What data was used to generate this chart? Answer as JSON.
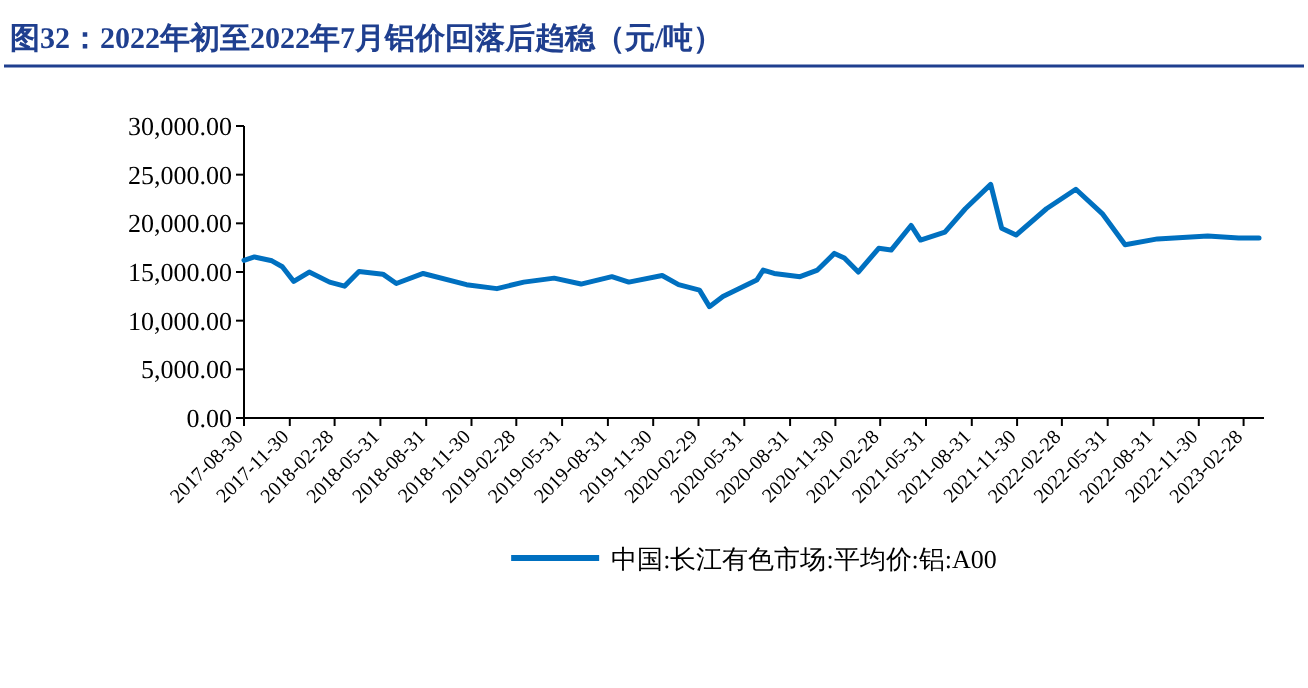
{
  "chart_data": {
    "type": "line",
    "title": "图32：2022年初至2022年7月铝价回落后趋稳（元/吨）",
    "x": [
      "2017-08-30",
      "2017-09-20",
      "2017-10-25",
      "2017-11-15",
      "2017-12-08",
      "2018-01-08",
      "2018-02-18",
      "2018-03-20",
      "2018-04-18",
      "2018-06-05",
      "2018-07-02",
      "2018-08-25",
      "2018-11-20",
      "2019-01-20",
      "2019-03-15",
      "2019-05-15",
      "2019-07-08",
      "2019-09-08",
      "2019-10-12",
      "2019-12-18",
      "2020-01-20",
      "2020-03-02",
      "2020-03-22",
      "2020-04-18",
      "2020-06-25",
      "2020-07-08",
      "2020-07-30",
      "2020-09-20",
      "2020-10-25",
      "2020-11-28",
      "2020-12-18",
      "2021-01-15",
      "2021-02-25",
      "2021-03-22",
      "2021-05-01",
      "2021-05-20",
      "2021-07-08",
      "2021-08-18",
      "2021-10-08",
      "2021-10-30",
      "2021-11-28",
      "2022-01-28",
      "2022-03-28",
      "2022-05-20",
      "2022-07-05",
      "2022-09-08",
      "2022-12-18",
      "2023-02-18",
      "2023-03-31"
    ],
    "series": [
      {
        "name": "中国:长江有色市场:平均价:铝:A00",
        "color": "#0070c0",
        "values": [
          16200,
          16550,
          16150,
          15540,
          14030,
          14990,
          13960,
          13550,
          15050,
          14780,
          13820,
          14850,
          13700,
          13290,
          13960,
          14370,
          13760,
          14520,
          13960,
          14640,
          13700,
          13140,
          11440,
          12470,
          14170,
          15200,
          14850,
          14520,
          15200,
          16910,
          16430,
          14990,
          17430,
          17250,
          19780,
          18280,
          19100,
          21500,
          24000,
          19500,
          18800,
          21500,
          23500,
          21000,
          17800,
          18400,
          18700,
          18500,
          18500
        ]
      }
    ],
    "xlim": [
      "2017-08-30",
      "2023-04-10"
    ],
    "xticks": [
      "2017-08-30",
      "2017-11-30",
      "2018-02-28",
      "2018-05-31",
      "2018-08-31",
      "2018-11-30",
      "2019-02-28",
      "2019-05-31",
      "2019-08-31",
      "2019-11-30",
      "2020-02-29",
      "2020-05-31",
      "2020-08-31",
      "2020-11-30",
      "2021-02-28",
      "2021-05-31",
      "2021-08-31",
      "2021-11-30",
      "2022-02-28",
      "2022-05-31",
      "2022-08-31",
      "2022-11-30",
      "2023-02-28"
    ],
    "ylim": [
      0,
      30000
    ],
    "yticks": [
      {
        "value": 0,
        "label": "0.00"
      },
      {
        "value": 5000,
        "label": "5,000.00"
      },
      {
        "value": 10000,
        "label": "10,000.00"
      },
      {
        "value": 15000,
        "label": "15,000.00"
      },
      {
        "value": 20000,
        "label": "20,000.00"
      },
      {
        "value": 25000,
        "label": "25,000.00"
      },
      {
        "value": 30000,
        "label": "30,000.00"
      }
    ],
    "legend": "bottom",
    "grid": false,
    "marker": "none",
    "line_style": "solid"
  }
}
